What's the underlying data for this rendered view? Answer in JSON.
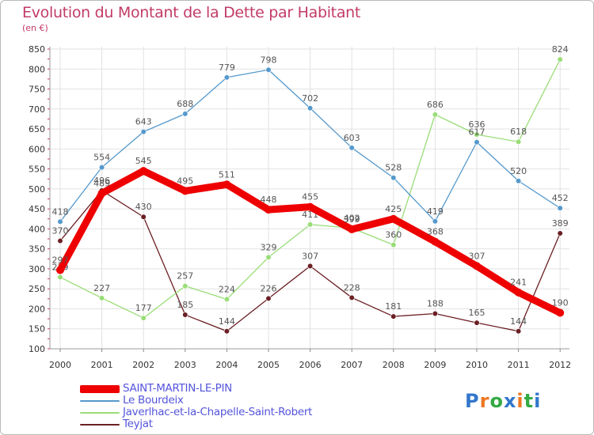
{
  "page": {
    "title": "Evolution du Montant de la Dette par Habitant",
    "subtitle": "(en €)"
  },
  "chart_data": {
    "type": "line",
    "x": [
      "2000",
      "2001",
      "2002",
      "2003",
      "2004",
      "2005",
      "2006",
      "2007",
      "2008",
      "2009",
      "2010",
      "2011",
      "2012"
    ],
    "ylim": [
      100,
      850
    ],
    "yticks": [
      100,
      150,
      200,
      250,
      300,
      350,
      400,
      450,
      500,
      550,
      600,
      650,
      700,
      750,
      800,
      850
    ],
    "grid": true,
    "legend_position": "bottom-left",
    "series": [
      {
        "name": "Teyjat",
        "color": "#6b1f24",
        "values": [
          370,
          496,
          430,
          185,
          144,
          226,
          307,
          228,
          181,
          188,
          165,
          144,
          389
        ]
      },
      {
        "name": "Javerlhac-et-la-Chapelle-Saint-Robert",
        "color": "#99dd77",
        "values": [
          279,
          227,
          177,
          257,
          224,
          329,
          411,
          402,
          360,
          686,
          636,
          618,
          824
        ]
      },
      {
        "name": "Le Bourdeix",
        "color": "#5599cc",
        "values": [
          418,
          554,
          643,
          688,
          779,
          798,
          702,
          603,
          528,
          419,
          617,
          520,
          452
        ]
      },
      {
        "name": "SAINT-MARTIN-LE-PIN",
        "color": "#ee0000",
        "values": [
          297,
          489,
          545,
          495,
          511,
          448,
          455,
          399,
          425,
          368,
          307,
          241,
          190
        ]
      }
    ]
  },
  "legend": [
    {
      "label": "SAINT-MARTIN-LE-PIN",
      "color": "#ee0000"
    },
    {
      "label": "Le Bourdeix",
      "color": "#5599cc"
    },
    {
      "label": "Javerlhac-et-la-Chapelle-Saint-Robert",
      "color": "#99dd77"
    },
    {
      "label": "Teyjat",
      "color": "#6b1f24"
    }
  ],
  "logo": {
    "letters": [
      "P",
      "r",
      "o",
      "x",
      "i",
      "t",
      "i"
    ],
    "colors": [
      "#3377cc",
      "#ee7722",
      "#33aa44",
      "#3377cc",
      "#ee7722",
      "#33aa44",
      "#3377cc"
    ]
  }
}
